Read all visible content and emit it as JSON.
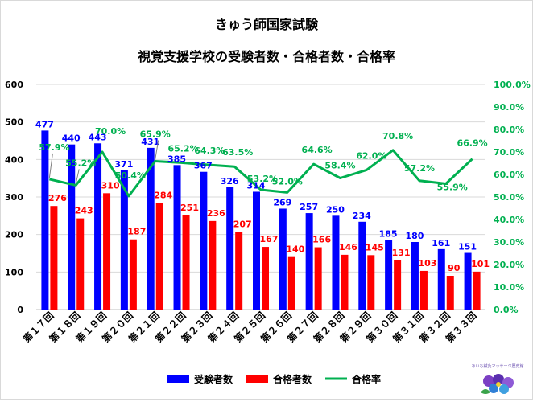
{
  "chart_data": {
    "type": "bar",
    "title_line1": "きゅう師国家試験",
    "title_line2": "視覚支援学校の受験者数・合格者数・合格率",
    "categories": [
      "第１７回",
      "第１８回",
      "第１９回",
      "第２０回",
      "第２１回",
      "第２２回",
      "第２３回",
      "第２４回",
      "第２５回",
      "第２６回",
      "第２７回",
      "第２８回",
      "第２９回",
      "第３０回",
      "第３１回",
      "第３２回",
      "第３３回"
    ],
    "series": [
      {
        "name": "受験者数",
        "type": "bar",
        "axis": "left",
        "color": "#0000FF",
        "values": [
          477,
          440,
          443,
          371,
          431,
          385,
          367,
          326,
          314,
          269,
          257,
          250,
          234,
          185,
          180,
          161,
          151
        ]
      },
      {
        "name": "合格者数",
        "type": "bar",
        "axis": "left",
        "color": "#FF0000",
        "values": [
          276,
          243,
          310,
          187,
          284,
          251,
          236,
          207,
          167,
          140,
          166,
          146,
          145,
          131,
          103,
          90,
          101
        ]
      },
      {
        "name": "合格率",
        "type": "line",
        "axis": "right",
        "color": "#00B050",
        "values": [
          57.9,
          55.2,
          70.0,
          50.4,
          65.9,
          65.2,
          64.3,
          63.5,
          53.2,
          52.0,
          64.6,
          58.4,
          62.0,
          70.8,
          57.2,
          55.9,
          66.9
        ]
      }
    ],
    "left_axis": {
      "ylim": [
        0,
        600
      ],
      "ticks": [
        "0",
        "100",
        "200",
        "300",
        "400",
        "500",
        "600"
      ]
    },
    "right_axis": {
      "ylim": [
        0,
        100
      ],
      "ticks": [
        "0.0%",
        "10.0%",
        "20.0%",
        "30.0%",
        "40.0%",
        "50.0%",
        "60.0%",
        "70.0%",
        "80.0%",
        "90.0%",
        "100.0%"
      ]
    },
    "grid": true,
    "legend_placement": "bottom"
  },
  "logo": {
    "text": "あいち鍼灸マッサージ歴史館"
  }
}
